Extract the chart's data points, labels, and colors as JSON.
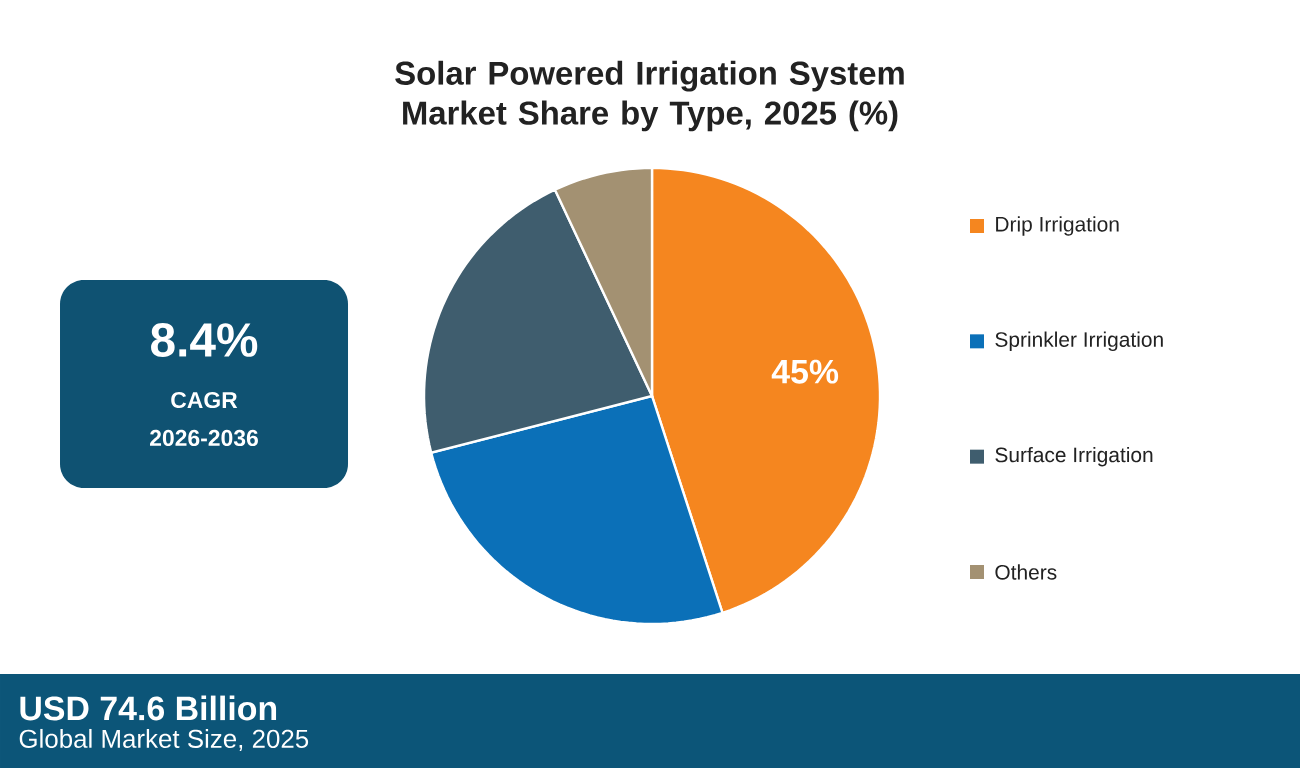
{
  "chart_data": {
    "type": "pie",
    "title": "Solar Powered Irrigation System Market Share by Type, 2025 (%)",
    "categories": [
      "Drip Irrigation",
      "Sprinkler Irrigation",
      "Surface Irrigation",
      "Others"
    ],
    "values": [
      45,
      26,
      22,
      7
    ],
    "colors": [
      "#f5861f",
      "#0b70b8",
      "#3f5d6e",
      "#a39172"
    ],
    "value_labels": [
      "45%",
      null,
      null,
      null
    ],
    "legend": "right",
    "annotations": [
      "8.4%",
      "CAGR",
      "2026-2036",
      "USD 74.6 Billion",
      "Global Market Size, 2025"
    ]
  }
}
